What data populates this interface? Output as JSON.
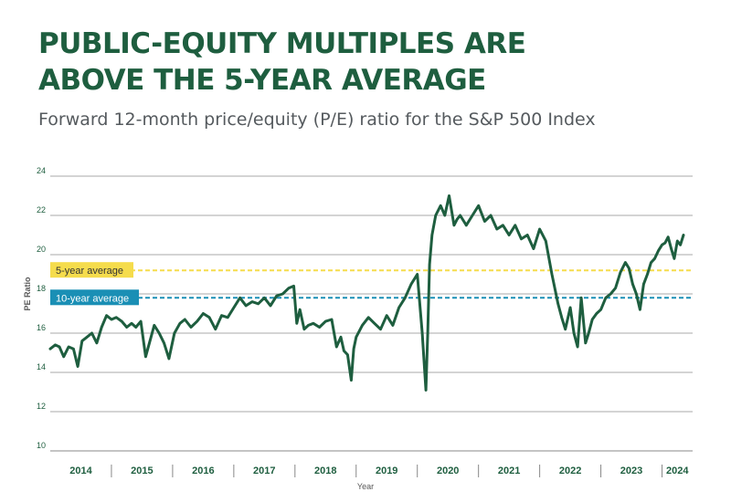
{
  "title_line1": "PUBLIC-EQUITY MULTIPLES ARE",
  "title_line2": "ABOVE THE 5-YEAR AVERAGE",
  "subtitle": "Forward 12-month price/equity (P/E) ratio for the S&P 500 Index",
  "chart_data": {
    "type": "line",
    "title": "PUBLIC-EQUITY MULTIPLES ARE ABOVE THE 5-YEAR AVERAGE",
    "subtitle": "Forward 12-month price/equity (P/E) ratio for the S&P 500 Index",
    "xlabel": "Year",
    "ylabel": "PE Ratio",
    "ylim": [
      10,
      24
    ],
    "yticks": [
      10,
      12,
      14,
      16,
      18,
      20,
      22,
      24
    ],
    "xlim": [
      2014.0,
      2024.5
    ],
    "year_labels": [
      "2014",
      "2015",
      "2016",
      "2017",
      "2018",
      "2019",
      "2020",
      "2021",
      "2022",
      "2023",
      "2024"
    ],
    "grid": true,
    "reference_lines": [
      {
        "label": "5-year average",
        "value": 19.2,
        "color": "#f5dc4c"
      },
      {
        "label": "10-year average",
        "value": 17.8,
        "color": "#1a8fb5"
      }
    ],
    "series": [
      {
        "color": "#1e5e3f",
        "x": [
          2014.0,
          2014.08,
          2014.15,
          2014.22,
          2014.3,
          2014.38,
          2014.45,
          2014.52,
          2014.6,
          2014.68,
          2014.76,
          2014.84,
          2014.92,
          2015.0,
          2015.08,
          2015.17,
          2015.25,
          2015.33,
          2015.4,
          2015.48,
          2015.56,
          2015.62,
          2015.7,
          2015.78,
          2015.86,
          2015.94,
          2016.03,
          2016.12,
          2016.2,
          2016.3,
          2016.4,
          2016.5,
          2016.6,
          2016.7,
          2016.8,
          2016.9,
          2017.0,
          2017.1,
          2017.2,
          2017.3,
          2017.4,
          2017.5,
          2017.6,
          2017.7,
          2017.8,
          2017.9,
          2017.98,
          2018.03,
          2018.08,
          2018.15,
          2018.22,
          2018.3,
          2018.4,
          2018.5,
          2018.6,
          2018.68,
          2018.75,
          2018.8,
          2018.86,
          2018.92,
          2018.96,
          2019.0,
          2019.1,
          2019.2,
          2019.3,
          2019.4,
          2019.5,
          2019.6,
          2019.7,
          2019.8,
          2019.9,
          2020.0,
          2020.08,
          2020.14,
          2020.17,
          2020.2,
          2020.24,
          2020.3,
          2020.38,
          2020.45,
          2020.52,
          2020.6,
          2020.65,
          2020.7,
          2020.8,
          2020.9,
          2021.0,
          2021.1,
          2021.2,
          2021.3,
          2021.4,
          2021.5,
          2021.6,
          2021.7,
          2021.8,
          2021.9,
          2022.0,
          2022.1,
          2022.2,
          2022.3,
          2022.36,
          2022.42,
          2022.5,
          2022.56,
          2022.62,
          2022.68,
          2022.75,
          2022.8,
          2022.86,
          2022.93,
          2023.0,
          2023.08,
          2023.16,
          2023.24,
          2023.32,
          2023.4,
          2023.46,
          2023.52,
          2023.58,
          2023.64,
          2023.7,
          2023.76,
          2023.82,
          2023.88,
          2023.94,
          2024.0,
          2024.05,
          2024.1,
          2024.15,
          2024.2,
          2024.25,
          2024.3,
          2024.35
        ],
        "y": [
          15.2,
          15.4,
          15.3,
          14.8,
          15.3,
          15.2,
          14.3,
          15.6,
          15.8,
          16.0,
          15.5,
          16.3,
          16.9,
          16.7,
          16.8,
          16.6,
          16.3,
          16.5,
          16.3,
          16.6,
          14.8,
          15.5,
          16.4,
          16.0,
          15.5,
          14.7,
          16.0,
          16.5,
          16.7,
          16.3,
          16.6,
          17.0,
          16.8,
          16.2,
          16.9,
          16.8,
          17.3,
          17.8,
          17.4,
          17.6,
          17.5,
          17.8,
          17.4,
          17.9,
          18.0,
          18.3,
          18.4,
          16.5,
          17.2,
          16.2,
          16.4,
          16.5,
          16.3,
          16.6,
          16.7,
          15.3,
          15.8,
          15.1,
          14.9,
          13.6,
          15.2,
          15.8,
          16.4,
          16.8,
          16.5,
          16.2,
          16.9,
          16.4,
          17.3,
          17.8,
          18.5,
          19.0,
          16.0,
          13.1,
          16.0,
          19.5,
          21.0,
          22.0,
          22.5,
          22.0,
          23.0,
          21.5,
          21.8,
          22.0,
          21.5,
          22.0,
          22.5,
          21.7,
          22.0,
          21.3,
          21.5,
          21.0,
          21.5,
          20.8,
          21.0,
          20.3,
          21.3,
          20.7,
          19.0,
          17.5,
          16.8,
          16.2,
          17.3,
          16.0,
          15.3,
          17.8,
          15.5,
          16.0,
          16.7,
          17.0,
          17.2,
          17.8,
          18.0,
          18.3,
          19.1,
          19.6,
          19.3,
          18.5,
          18.0,
          17.2,
          18.5,
          19.0,
          19.6,
          19.8,
          20.2,
          20.5,
          20.6,
          20.9,
          20.3,
          19.8,
          20.7,
          20.5,
          21.0
        ]
      }
    ]
  }
}
